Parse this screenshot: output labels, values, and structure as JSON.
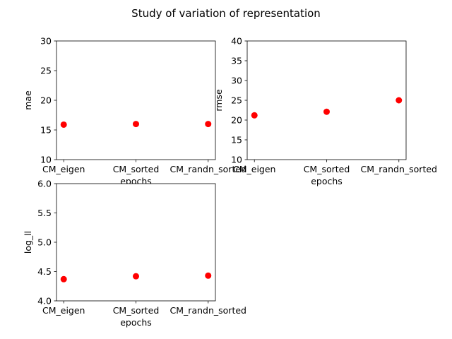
{
  "figure": {
    "suptitle": "Study of variation of representation"
  },
  "chart_data": [
    {
      "type": "scatter",
      "categories": [
        "CM_eigen",
        "CM_sorted",
        "CM_randn_sorted"
      ],
      "values": [
        15.9,
        16.0,
        16.0
      ],
      "xlabel": "epochs",
      "ylabel": "mae",
      "ylim": [
        10,
        30
      ],
      "yticks": [
        10,
        15,
        20,
        25,
        30
      ],
      "marker_color": "#ff0000",
      "grid": false
    },
    {
      "type": "scatter",
      "categories": [
        "CM_eigen",
        "CM_sorted",
        "CM_randn_sorted"
      ],
      "values": [
        21.2,
        22.1,
        25.0
      ],
      "xlabel": "epochs",
      "ylabel": "rmse",
      "ylim": [
        10,
        40
      ],
      "yticks": [
        10,
        15,
        20,
        25,
        30,
        35,
        40
      ],
      "marker_color": "#ff0000",
      "grid": false
    },
    {
      "type": "scatter",
      "categories": [
        "CM_eigen",
        "CM_sorted",
        "CM_randn_sorted"
      ],
      "values": [
        4.37,
        4.42,
        4.43
      ],
      "xlabel": "epochs",
      "ylabel": "log_ll",
      "ylim": [
        4.0,
        6.0
      ],
      "yticks": [
        "4.0",
        "4.5",
        "5.0",
        "5.5",
        "6.0"
      ],
      "marker_color": "#ff0000",
      "grid": false
    }
  ]
}
